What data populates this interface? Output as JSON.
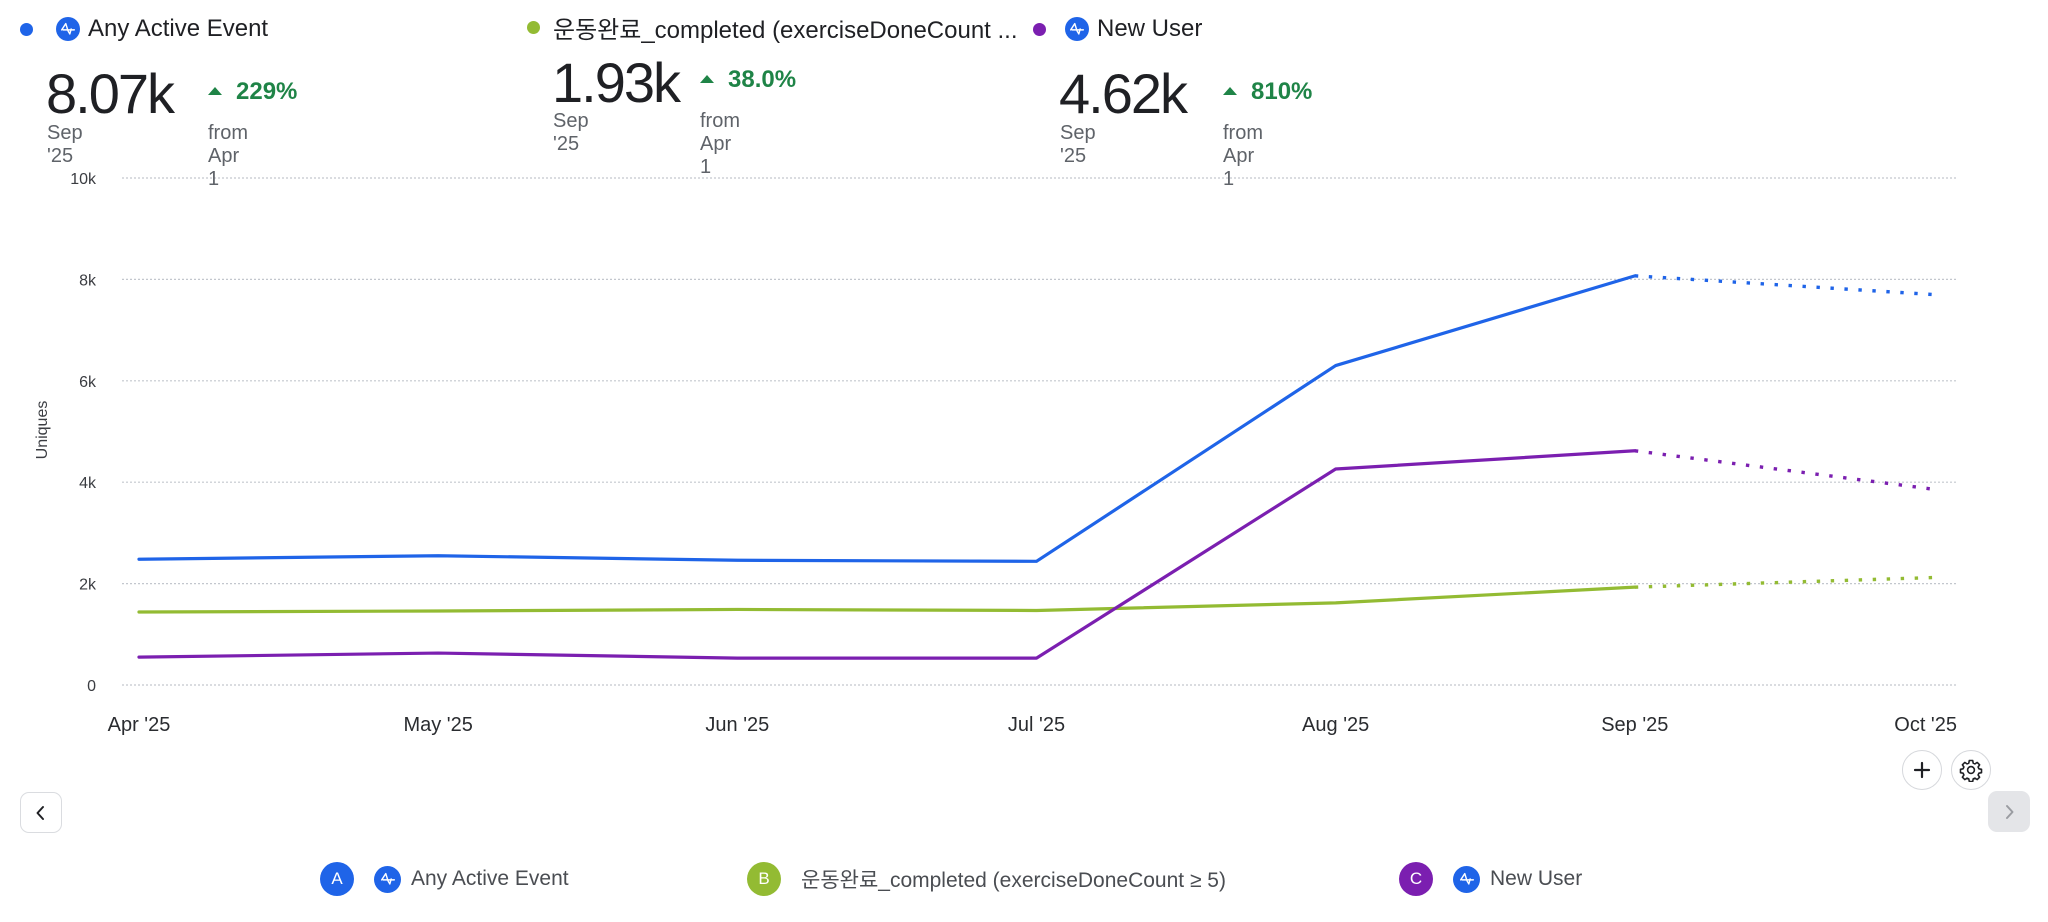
{
  "colors": {
    "blue": "#1f64e8",
    "green": "#93bb33",
    "purple": "#7b1fb0",
    "positive": "#1f8447"
  },
  "cards": [
    {
      "title": "Any Active Event",
      "has_icon": true,
      "icon": "amplitude-logo-icon",
      "value": "8.07k",
      "period": "Sep '25",
      "delta": "229%",
      "delta_direction": "up",
      "from": "from Apr 1",
      "color": "#1f64e8"
    },
    {
      "title": "운동완료_completed (exerciseDoneCount ...",
      "has_icon": false,
      "value": "1.93k",
      "period": "Sep '25",
      "delta": "38.0%",
      "delta_direction": "up",
      "from": "from Apr 1",
      "color": "#93bb33"
    },
    {
      "title": "New User",
      "has_icon": true,
      "icon": "amplitude-logo-icon",
      "value": "4.62k",
      "period": "Sep '25",
      "delta": "810%",
      "delta_direction": "up",
      "from": "from Apr 1",
      "color": "#7b1fb0"
    }
  ],
  "controls": {
    "add_icon": "plus-icon",
    "settings_icon": "gear-icon",
    "prev_icon": "chevron-left-icon",
    "next_icon": "chevron-right-icon"
  },
  "legend": [
    {
      "badge": "A",
      "label": "Any Active Event",
      "has_icon": true,
      "color": "#1f64e8"
    },
    {
      "badge": "B",
      "label": "운동완료_completed (exerciseDoneCount ≥ 5)",
      "has_icon": false,
      "color": "#93bb33"
    },
    {
      "badge": "C",
      "label": "New User",
      "has_icon": true,
      "color": "#7b1fb0"
    }
  ],
  "chart_data": {
    "type": "line",
    "title": "",
    "xlabel": "",
    "ylabel": "Uniques",
    "categories": [
      "Apr '25",
      "May '25",
      "Jun '25",
      "Jul '25",
      "Aug '25",
      "Sep '25",
      "Oct '25"
    ],
    "ylim": [
      0,
      10000
    ],
    "yticks": [
      0,
      2000,
      4000,
      6000,
      8000,
      10000
    ],
    "ytick_labels": [
      "0",
      "2k",
      "4k",
      "6k",
      "8k",
      "10k"
    ],
    "grid": true,
    "forecast_from_index": 5,
    "series": [
      {
        "name": "Any Active Event",
        "color": "#1f64e8",
        "values": [
          2480,
          2550,
          2460,
          2440,
          6300,
          8070,
          7700
        ]
      },
      {
        "name": "운동완료_completed (exerciseDoneCount ≥ 5)",
        "color": "#93bb33",
        "values": [
          1440,
          1460,
          1490,
          1470,
          1620,
          1930,
          2120
        ]
      },
      {
        "name": "New User",
        "color": "#7b1fb0",
        "values": [
          550,
          630,
          530,
          530,
          4260,
          4620,
          3860
        ]
      }
    ]
  }
}
